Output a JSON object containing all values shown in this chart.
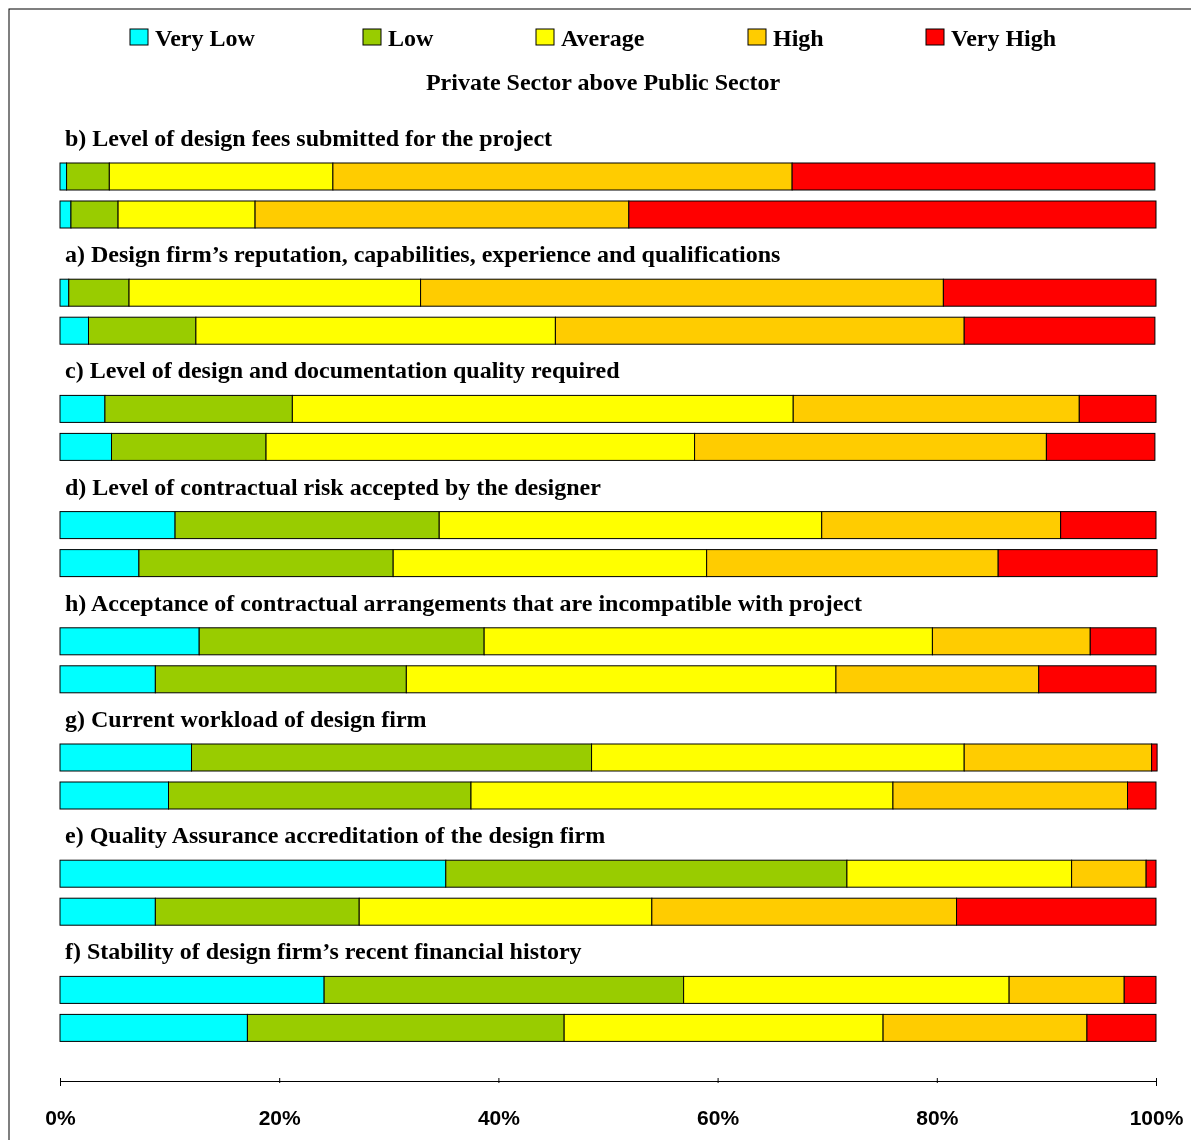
{
  "chart_data": {
    "type": "bar",
    "orientation": "horizontal",
    "stacked": true,
    "subtitle": "Private Sector above Public Sector",
    "legend": "top",
    "categories": [
      "b) Level of design fees submitted for the project",
      null,
      "a) Design firm’s reputation, capabilities, experience and qualifications",
      null,
      "c) Level of design and documentation quality required",
      null,
      "d) Level of contractual risk accepted by the designer",
      null,
      "h) Acceptance of contractual arrangements that are incompatible with project",
      null,
      "g) Current workload of design firm",
      null,
      "e) Quality Assurance accreditation of the design firm",
      null,
      "f) Stability of design firm’s recent financial history",
      null
    ],
    "series": [
      {
        "name": "Very Low",
        "color": "#00ffff",
        "values": [
          0.6,
          1.0,
          0.8,
          2.6,
          4.1,
          4.7,
          10.5,
          7.2,
          12.7,
          8.7,
          12.0,
          9.9,
          35.2,
          8.7,
          24.1,
          17.1
        ]
      },
      {
        "name": "Low",
        "color": "#99cc00",
        "values": [
          3.9,
          4.3,
          5.5,
          9.8,
          17.1,
          14.1,
          24.1,
          23.2,
          26.0,
          22.9,
          36.5,
          27.6,
          36.6,
          18.6,
          32.8,
          28.9
        ]
      },
      {
        "name": "Average",
        "color": "#ffff00",
        "values": [
          20.4,
          12.5,
          26.6,
          32.8,
          45.7,
          39.1,
          34.9,
          28.6,
          40.9,
          39.2,
          34.0,
          38.5,
          20.5,
          26.7,
          29.7,
          29.1
        ]
      },
      {
        "name": "High",
        "color": "#ffcc00",
        "values": [
          41.9,
          34.1,
          47.7,
          37.3,
          26.1,
          32.1,
          21.8,
          26.6,
          14.4,
          18.5,
          17.1,
          21.4,
          6.8,
          27.8,
          10.5,
          18.6
        ]
      },
      {
        "name": "Very High",
        "color": "#ff0000",
        "values": [
          33.1,
          48.1,
          19.4,
          17.4,
          7.0,
          9.9,
          8.7,
          14.5,
          6.0,
          10.7,
          0.5,
          2.6,
          0.9,
          18.2,
          2.9,
          6.3
        ]
      }
    ],
    "xlim": [
      0,
      100
    ],
    "xticks": [
      {
        "value": 0,
        "label": "0%"
      },
      {
        "value": 20,
        "label": "20%"
      },
      {
        "value": 40,
        "label": "40%"
      },
      {
        "value": 60,
        "label": "60%"
      },
      {
        "value": 80,
        "label": "80%"
      },
      {
        "value": 100,
        "label": "100%"
      }
    ]
  }
}
